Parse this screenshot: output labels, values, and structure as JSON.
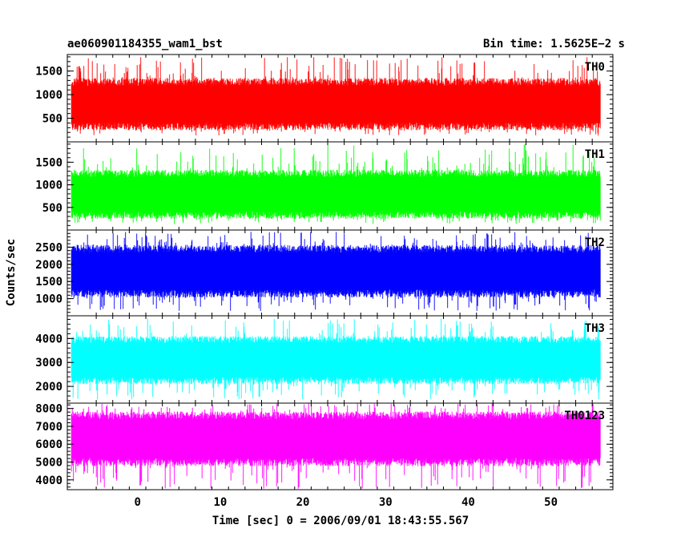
{
  "header": {
    "title": "ae060901184355_wam1_bst",
    "bin_time": "Bin time: 1.5625E−2 s"
  },
  "chart_data": {
    "type": "line",
    "xlabel": "Time [sec] 0 = 2006/09/01 18:43:55.567",
    "ylabel": "Counts/sec",
    "xlim": [
      -8.5,
      57.5
    ],
    "x_range": [
      -8,
      56
    ],
    "bin_time": 0.015625,
    "x_ticks": [
      0,
      10,
      20,
      30,
      40,
      50
    ],
    "x_tick_labels": [
      "0",
      "10",
      "20",
      "30",
      "40",
      "50"
    ],
    "panels": [
      {
        "name": "TH0",
        "color": "#ff0000",
        "ylim": [
          0,
          1850
        ],
        "y_ticks": [
          500,
          1000,
          1500
        ],
        "y_tick_labels": [
          "500",
          "1000",
          "1500"
        ],
        "band_low": 330,
        "band_high": 1270,
        "peak_max": 1800,
        "dip_min": 130
      },
      {
        "name": "TH1",
        "color": "#00ff00",
        "ylim": [
          0,
          1950
        ],
        "y_ticks": [
          500,
          1000,
          1500
        ],
        "y_tick_labels": [
          "500",
          "1000",
          "1500"
        ],
        "band_low": 330,
        "band_high": 1250,
        "peak_max": 1900,
        "dip_min": 130
      },
      {
        "name": "TH2",
        "color": "#0000ff",
        "ylim": [
          500,
          3000
        ],
        "y_ticks": [
          1000,
          1500,
          2000,
          2500
        ],
        "y_tick_labels": [
          "1000",
          "1500",
          "2000",
          "2500"
        ],
        "band_low": 1150,
        "band_high": 2450,
        "peak_max": 2950,
        "dip_min": 640
      },
      {
        "name": "TH3",
        "color": "#00ffff",
        "ylim": [
          1300,
          4950
        ],
        "y_ticks": [
          2000,
          3000,
          4000
        ],
        "y_tick_labels": [
          "2000",
          "3000",
          "4000"
        ],
        "band_low": 2250,
        "band_high": 3950,
        "peak_max": 4850,
        "dip_min": 1450
      },
      {
        "name": "TH0123",
        "color": "#ff00ff",
        "ylim": [
          3450,
          8300
        ],
        "y_ticks": [
          4000,
          5000,
          6000,
          7000,
          8000
        ],
        "y_tick_labels": [
          "4000",
          "5000",
          "6000",
          "7000",
          "8000"
        ],
        "band_low": 5000,
        "band_high": 7600,
        "peak_max": 8300,
        "dip_min": 3500
      }
    ]
  }
}
